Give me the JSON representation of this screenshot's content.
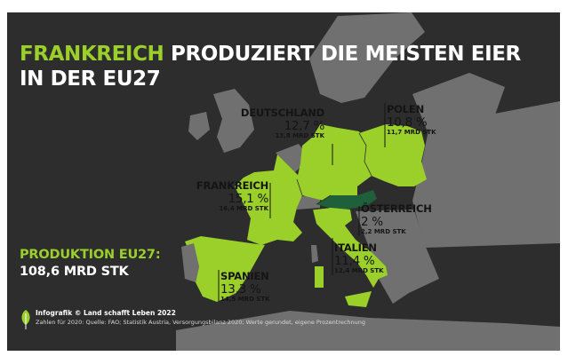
{
  "title": {
    "highlight": "FRANKREICH",
    "line1_rest": " PRODUZIERT DIE MEISTEN EIER",
    "line2": "IN DER EU27"
  },
  "countries": {
    "deutschland": {
      "name": "DEUTSCHLAND",
      "percent": "12,7 %",
      "amount": "13,8 MRD STK",
      "share": 12.7,
      "amount_mrd": 13.8
    },
    "polen": {
      "name": "POLEN",
      "percent": "10,8 %",
      "amount": "11,7 MRD STK",
      "share": 10.8,
      "amount_mrd": 11.7
    },
    "frankreich": {
      "name": "FRANKREICH",
      "percent": "15,1 %",
      "amount": "16,4 MRD STK",
      "share": 15.1,
      "amount_mrd": 16.4
    },
    "oesterreich": {
      "name": "ÖSTERREICH",
      "percent": "2 %",
      "amount": "2,2 MRD STK",
      "share": 2,
      "amount_mrd": 2.2
    },
    "italien": {
      "name": "ITALIEN",
      "percent": "11,4 %",
      "amount": "12,4 MRD STK",
      "share": 11.4,
      "amount_mrd": 12.4
    },
    "spanien": {
      "name": "SPANIEN",
      "percent": "13,3 %",
      "amount": "14,5 MRD STK",
      "share": 13.3,
      "amount_mrd": 14.5
    }
  },
  "production": {
    "label": "PRODUKTION EU27:",
    "value": "108,6 MRD STK"
  },
  "footer": {
    "credit": "Infografik © Land schafft Leben 2022",
    "source": "Zahlen für 2020: Quelle: FAO; Statistik Austria, Versorgungsbilanz 2020; Werte gerundet, eigene Prozentrechnung"
  },
  "colors": {
    "background": "#2d2d2d",
    "land": "#707070",
    "highlight_country": "#9bcf2a",
    "austria": "#1f5f3a",
    "accent_text": "#9bcf2a"
  }
}
